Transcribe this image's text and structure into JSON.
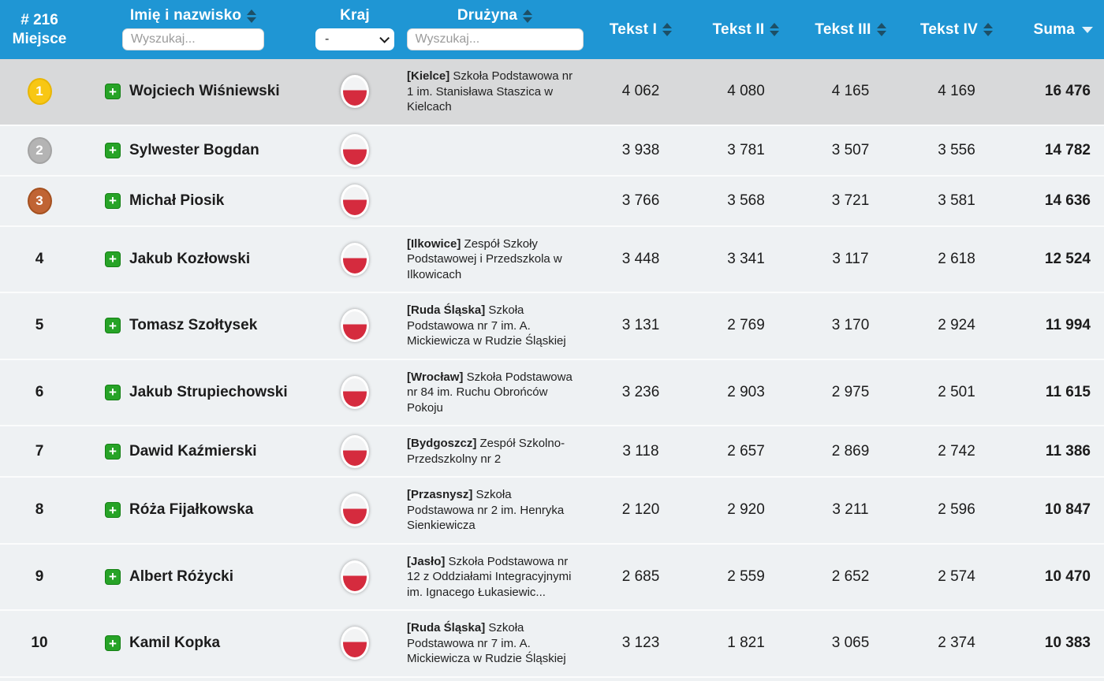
{
  "header": {
    "rank_line1": "# 216",
    "rank_line2": "Miejsce",
    "name_label": "Imię i nazwisko",
    "name_search_placeholder": "Wyszukaj...",
    "country_label": "Kraj",
    "country_selected": "-",
    "team_label": "Drużyna",
    "team_search_placeholder": "Wyszukaj...",
    "score_columns": [
      "Tekst I",
      "Tekst II",
      "Tekst III",
      "Tekst IV"
    ],
    "sum_label": "Suma"
  },
  "colors": {
    "header_bg": "#1f96d4",
    "sort_arrow": "#1d4f66",
    "sort_arrow_active": "#e2f2fb",
    "highlight_row_bg": "#d8d9da",
    "row_bg": "#eef1f3",
    "medal_gold": "#f8c714",
    "medal_silver": "#b4b4b4",
    "medal_bronze": "#c06434",
    "flag_red": "#d52b3e",
    "expand_green": "#27a327"
  },
  "sort": {
    "active_column": "Suma",
    "direction": "desc"
  },
  "rows": [
    {
      "rank": "1",
      "medal": "gold",
      "highlighted": true,
      "name": "Wojciech Wiśniewski",
      "country": "Polska",
      "team_city": "[Kielce]",
      "team_text": "Szkoła Podstawowa nr 1 im. Stanisława Staszica w Kielcach",
      "scores": [
        "4 062",
        "4 080",
        "4 165",
        "4 169"
      ],
      "sum": "16 476"
    },
    {
      "rank": "2",
      "medal": "silver",
      "highlighted": false,
      "name": "Sylwester Bogdan",
      "country": "Polska",
      "team_city": "",
      "team_text": "",
      "scores": [
        "3 938",
        "3 781",
        "3 507",
        "3 556"
      ],
      "sum": "14 782"
    },
    {
      "rank": "3",
      "medal": "bronze",
      "highlighted": false,
      "name": "Michał Piosik",
      "country": "Polska",
      "team_city": "",
      "team_text": "",
      "scores": [
        "3 766",
        "3 568",
        "3 721",
        "3 581"
      ],
      "sum": "14 636"
    },
    {
      "rank": "4",
      "medal": "none",
      "highlighted": false,
      "name": "Jakub Kozłowski",
      "country": "Polska",
      "team_city": "[Ilkowice]",
      "team_text": "Zespół Szkoły Podstawowej i Przedszkola w Ilkowicach",
      "scores": [
        "3 448",
        "3 341",
        "3 117",
        "2 618"
      ],
      "sum": "12 524"
    },
    {
      "rank": "5",
      "medal": "none",
      "highlighted": false,
      "name": "Tomasz Szołtysek",
      "country": "Polska",
      "team_city": "[Ruda Śląska]",
      "team_text": "Szkoła Podstawowa nr 7 im. A. Mickiewicza w Rudzie Śląskiej",
      "scores": [
        "3 131",
        "2 769",
        "3 170",
        "2 924"
      ],
      "sum": "11 994"
    },
    {
      "rank": "6",
      "medal": "none",
      "highlighted": false,
      "name": "Jakub Strupiechowski",
      "country": "Polska",
      "team_city": "[Wrocław]",
      "team_text": "Szkoła Podstawowa nr 84 im. Ruchu Obrońców Pokoju",
      "scores": [
        "3 236",
        "2 903",
        "2 975",
        "2 501"
      ],
      "sum": "11 615"
    },
    {
      "rank": "7",
      "medal": "none",
      "highlighted": false,
      "name": "Dawid Kaźmierski",
      "country": "Polska",
      "team_city": "[Bydgoszcz]",
      "team_text": "Zespół Szkolno-Przedszkolny nr 2",
      "scores": [
        "3 118",
        "2 657",
        "2 869",
        "2 742"
      ],
      "sum": "11 386"
    },
    {
      "rank": "8",
      "medal": "none",
      "highlighted": false,
      "name": "Róża Fijałkowska",
      "country": "Polska",
      "team_city": "[Przasnysz]",
      "team_text": "Szkoła Podstawowa nr 2 im. Henryka Sienkiewicza",
      "scores": [
        "2 120",
        "2 920",
        "3 211",
        "2 596"
      ],
      "sum": "10 847"
    },
    {
      "rank": "9",
      "medal": "none",
      "highlighted": false,
      "name": "Albert Różycki",
      "country": "Polska",
      "team_city": "[Jasło]",
      "team_text": "Szkoła Podstawowa nr 12 z Oddziałami Integracyjnymi im. Ignacego Łukasiewic...",
      "scores": [
        "2 685",
        "2 559",
        "2 652",
        "2 574"
      ],
      "sum": "10 470"
    },
    {
      "rank": "10",
      "medal": "none",
      "highlighted": false,
      "name": "Kamil Kopka",
      "country": "Polska",
      "team_city": "[Ruda Śląska]",
      "team_text": "Szkoła Podstawowa nr 7 im. A. Mickiewicza w Rudzie Śląskiej",
      "scores": [
        "3 123",
        "1 821",
        "3 065",
        "2 374"
      ],
      "sum": "10 383"
    }
  ]
}
